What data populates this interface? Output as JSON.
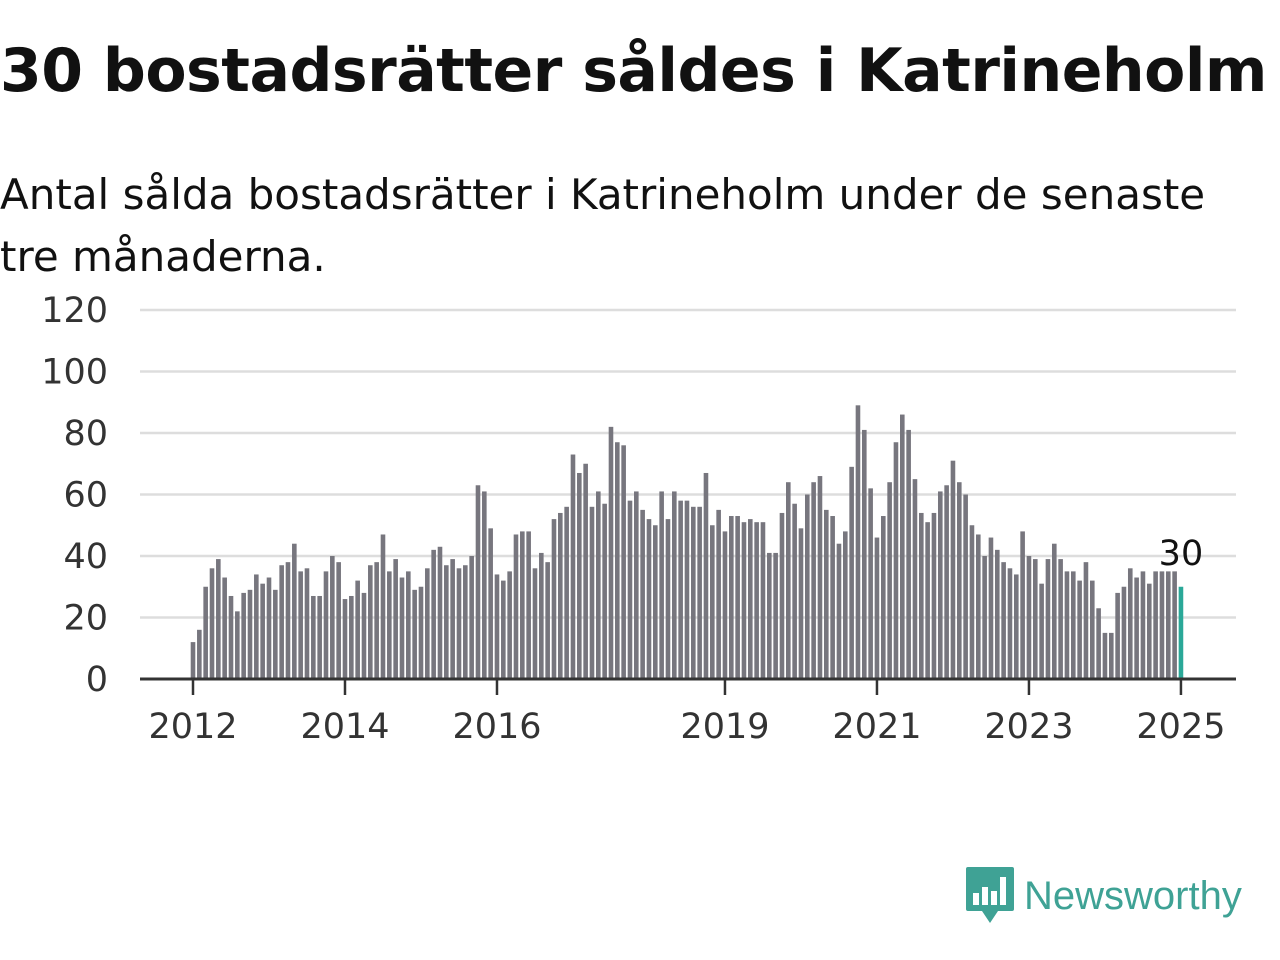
{
  "title": "30 bostadsrätter såldes i Katrineholm",
  "subtitle": "Antal sålda bostadsrätter i Katrineholm under de senaste tre månaderna.",
  "colors": {
    "bar": "#77767e",
    "highlight": "#2aa898",
    "grid": "#dddddd",
    "axis": "#333333",
    "brand": "#3fa295"
  },
  "brand": {
    "name": "Newsworthy",
    "icon": "chart-bubble-icon"
  },
  "chart_data": {
    "type": "bar",
    "title": "30 bostadsrätter såldes i Katrineholm",
    "subtitle": "Antal sålda bostadsrätter i Katrineholm under de senaste tre månaderna.",
    "xlabel": "",
    "ylabel": "",
    "ylim": [
      0,
      120
    ],
    "yticks": [
      "0",
      "20",
      "40",
      "60",
      "80",
      "100",
      "120"
    ],
    "xticks": [
      "2012",
      "2014",
      "2016",
      "2019",
      "2021",
      "2023",
      "2025"
    ],
    "grid": true,
    "x_start": "2012-01",
    "x_end": "2025-01",
    "highlight_last": true,
    "last_value_label": "30",
    "values": [
      12,
      16,
      30,
      36,
      39,
      33,
      27,
      22,
      28,
      29,
      34,
      31,
      33,
      29,
      37,
      38,
      44,
      35,
      36,
      27,
      27,
      35,
      40,
      38,
      26,
      27,
      32,
      28,
      37,
      38,
      47,
      35,
      39,
      33,
      35,
      29,
      30,
      36,
      42,
      43,
      37,
      39,
      36,
      37,
      40,
      63,
      61,
      49,
      34,
      32,
      35,
      47,
      48,
      48,
      36,
      41,
      38,
      52,
      54,
      56,
      73,
      67,
      70,
      56,
      61,
      57,
      82,
      77,
      76,
      58,
      61,
      55,
      52,
      50,
      61,
      52,
      61,
      58,
      58,
      56,
      56,
      67,
      50,
      55,
      48,
      53,
      53,
      51,
      52,
      51,
      51,
      41,
      41,
      54,
      64,
      57,
      49,
      60,
      64,
      66,
      55,
      53,
      44,
      48,
      69,
      89,
      81,
      62,
      46,
      53,
      64,
      77,
      86,
      81,
      65,
      54,
      51,
      54,
      61,
      63,
      71,
      64,
      60,
      50,
      47,
      40,
      46,
      42,
      38,
      36,
      34,
      48,
      40,
      39,
      31,
      39,
      44,
      39,
      35,
      35,
      32,
      38,
      32,
      23,
      15,
      15,
      28,
      30,
      36,
      33,
      35,
      31,
      35,
      35,
      35,
      35,
      30
    ]
  }
}
